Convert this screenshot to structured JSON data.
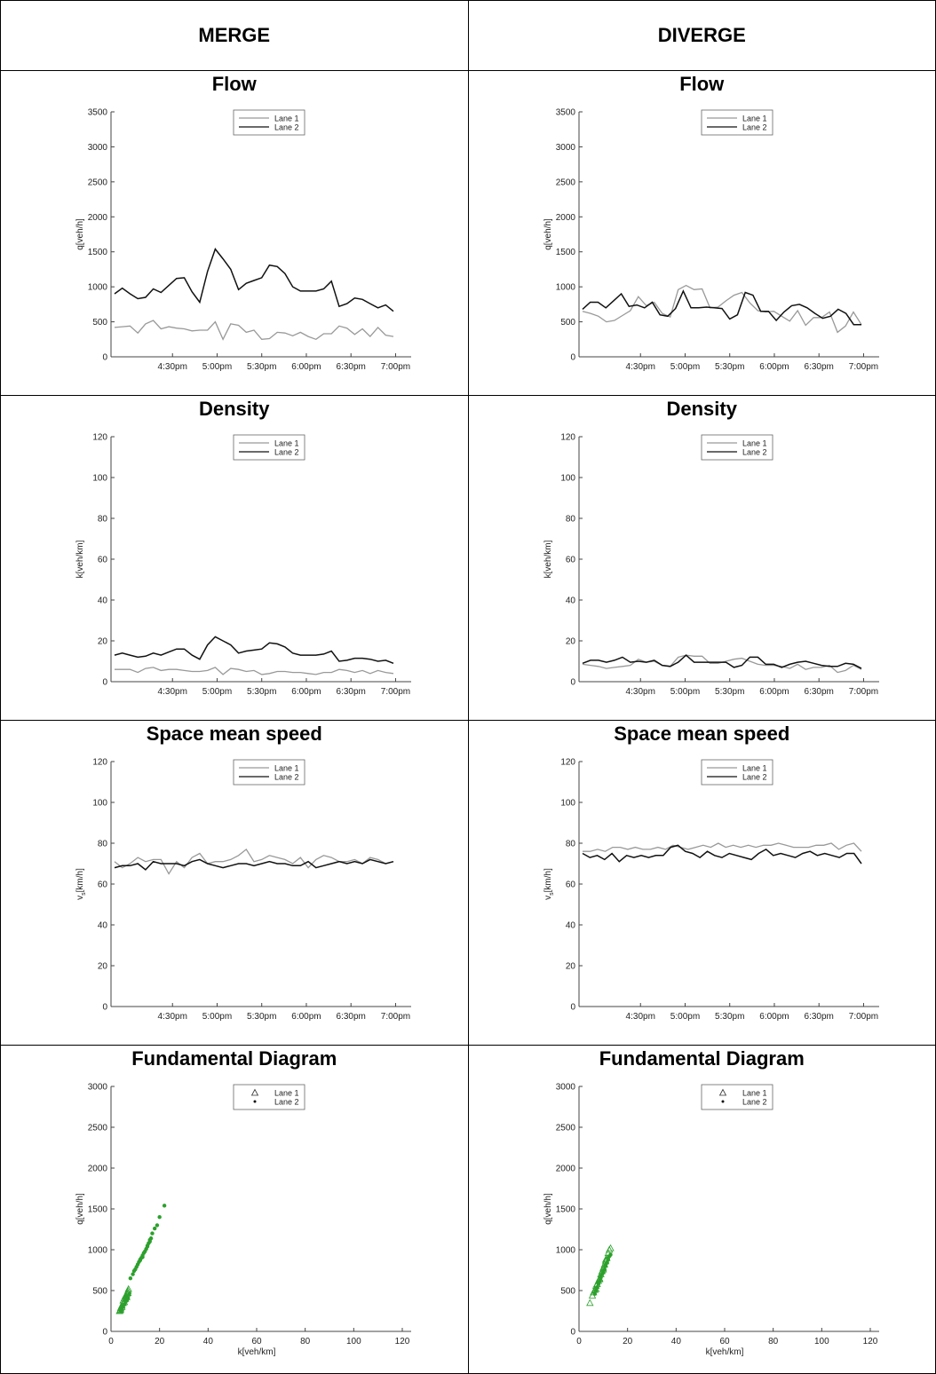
{
  "headers": {
    "left": "MERGE",
    "right": "DIVERGE"
  },
  "xticks_time": [
    "4:30pm",
    "5:00pm",
    "5:30pm",
    "6:00pm",
    "6:30pm",
    "7:00pm"
  ],
  "legend": {
    "lane1": "Lane 1",
    "lane2": "Lane 2"
  },
  "colors": {
    "lane1": "#999999",
    "lane2": "#111111",
    "fd": "#2ca02c"
  },
  "chart_data": [
    {
      "id": "merge-flow",
      "panel": "MERGE",
      "type": "line",
      "title": "Flow",
      "ylabel": "q[veh/h]",
      "ylim": [
        0,
        3500
      ],
      "yticks": [
        0,
        500,
        1000,
        1500,
        2000,
        2500,
        3000,
        3500
      ],
      "series": [
        {
          "name": "Lane 1",
          "values": [
            420,
            430,
            440,
            340,
            470,
            520,
            400,
            430,
            410,
            400,
            370,
            380,
            380,
            500,
            250,
            470,
            450,
            350,
            380,
            250,
            260,
            350,
            340,
            300,
            350,
            290,
            250,
            330,
            330,
            440,
            410,
            320,
            400,
            290,
            420,
            310,
            290
          ]
        },
        {
          "name": "Lane 2",
          "values": [
            900,
            980,
            900,
            830,
            850,
            970,
            920,
            1020,
            1120,
            1130,
            930,
            780,
            1220,
            1540,
            1400,
            1250,
            960,
            1050,
            1090,
            1130,
            1310,
            1290,
            1190,
            1000,
            940,
            940,
            940,
            970,
            1080,
            720,
            760,
            840,
            820,
            760,
            700,
            740,
            650
          ]
        }
      ]
    },
    {
      "id": "diverge-flow",
      "panel": "DIVERGE",
      "type": "line",
      "title": "Flow",
      "ylabel": "q[veh/h]",
      "ylim": [
        0,
        3500
      ],
      "yticks": [
        0,
        500,
        1000,
        1500,
        2000,
        2500,
        3000,
        3500
      ],
      "series": [
        {
          "name": "Lane 1",
          "values": [
            650,
            620,
            580,
            500,
            520,
            590,
            660,
            860,
            730,
            780,
            620,
            570,
            960,
            1020,
            960,
            970,
            700,
            710,
            800,
            880,
            920,
            770,
            660,
            640,
            650,
            580,
            510,
            660,
            450,
            560,
            560,
            640,
            350,
            440,
            640,
            460
          ]
        },
        {
          "name": "Lane 2",
          "values": [
            680,
            780,
            780,
            700,
            800,
            900,
            720,
            740,
            700,
            780,
            600,
            580,
            690,
            940,
            700,
            700,
            710,
            700,
            690,
            540,
            600,
            920,
            880,
            650,
            650,
            520,
            640,
            730,
            750,
            700,
            620,
            550,
            580,
            680,
            620,
            460,
            460
          ]
        }
      ]
    },
    {
      "id": "merge-density",
      "panel": "MERGE",
      "type": "line",
      "title": "Density",
      "ylabel": "k[veh/km]",
      "ylim": [
        0,
        120
      ],
      "yticks": [
        0,
        20,
        40,
        60,
        80,
        100,
        120
      ],
      "series": [
        {
          "name": "Lane 1",
          "values": [
            6,
            6,
            6,
            4.5,
            6.5,
            7,
            5.5,
            6,
            6,
            5.5,
            5,
            5,
            5.5,
            7,
            3.5,
            6.5,
            6,
            5,
            5.5,
            3.5,
            4,
            5,
            5,
            4.5,
            4.5,
            4,
            3.5,
            4.5,
            4.5,
            6,
            5.5,
            4.5,
            5.5,
            4,
            5.5,
            4.5,
            4
          ]
        },
        {
          "name": "Lane 2",
          "values": [
            13,
            14,
            13,
            12,
            12.5,
            14,
            13,
            14.5,
            16,
            16,
            13,
            11,
            18,
            22,
            20,
            18,
            14,
            15,
            15.5,
            16,
            19,
            18.5,
            17,
            14,
            13,
            13,
            13,
            13.5,
            15,
            10,
            10.5,
            11.5,
            11.5,
            11,
            10,
            10.5,
            9
          ]
        }
      ]
    },
    {
      "id": "diverge-density",
      "panel": "DIVERGE",
      "type": "line",
      "title": "Density",
      "ylabel": "k[veh/km]",
      "ylim": [
        0,
        120
      ],
      "yticks": [
        0,
        20,
        40,
        60,
        80,
        100,
        120
      ],
      "series": [
        {
          "name": "Lane 1",
          "values": [
            8.5,
            8,
            7.5,
            6.5,
            7,
            7.5,
            8,
            11,
            9.5,
            10,
            8,
            7.5,
            12,
            13,
            12.5,
            12.5,
            9,
            9,
            10,
            11,
            11.5,
            10,
            8.5,
            8,
            8,
            7.5,
            6.5,
            8.5,
            6,
            7,
            7,
            8,
            4.5,
            5.5,
            8,
            6
          ]
        },
        {
          "name": "Lane 2",
          "values": [
            9,
            10.5,
            10.5,
            9.5,
            10.5,
            12,
            9.5,
            10,
            9.5,
            10.5,
            8,
            7.5,
            9.5,
            13,
            9.5,
            9.5,
            9.5,
            9.5,
            9.5,
            7,
            8,
            12,
            12,
            8.5,
            8.5,
            7,
            8.5,
            9.5,
            10,
            9,
            8,
            7.5,
            7.5,
            9,
            8.5,
            6.5
          ]
        }
      ]
    },
    {
      "id": "merge-speed",
      "panel": "MERGE",
      "type": "line",
      "title": "Space mean speed",
      "ylabel": "v_s[km/h]",
      "ylim": [
        0,
        120
      ],
      "yticks": [
        0,
        20,
        40,
        60,
        80,
        100,
        120
      ],
      "series": [
        {
          "name": "Lane 1",
          "values": [
            71,
            68,
            70,
            73,
            71,
            72,
            72,
            65,
            71,
            68,
            73,
            75,
            70,
            71,
            71,
            72,
            74,
            77,
            71,
            72,
            74,
            73,
            72,
            70,
            73,
            68,
            72,
            74,
            73,
            71,
            71,
            72,
            70,
            73,
            72,
            70,
            71
          ]
        },
        {
          "name": "Lane 2",
          "values": [
            68,
            69,
            69,
            70,
            67,
            71,
            70,
            70,
            70,
            69,
            71,
            72,
            70,
            69,
            68,
            69,
            70,
            70,
            69,
            70,
            71,
            70,
            70,
            69,
            69,
            71,
            68,
            69,
            70,
            71,
            70,
            71,
            70,
            72,
            71,
            70,
            71
          ]
        }
      ]
    },
    {
      "id": "diverge-speed",
      "panel": "DIVERGE",
      "type": "line",
      "title": "Space mean speed",
      "ylabel": "v_s[km/h]",
      "ylim": [
        0,
        120
      ],
      "yticks": [
        0,
        20,
        40,
        60,
        80,
        100,
        120
      ],
      "series": [
        {
          "name": "Lane 1",
          "values": [
            76,
            76,
            77,
            76,
            78,
            78,
            77,
            78,
            77,
            77,
            78,
            77,
            79,
            78,
            77,
            78,
            79,
            78,
            80,
            78,
            79,
            78,
            79,
            78,
            79,
            79,
            80,
            79,
            78,
            78,
            78,
            79,
            79,
            80,
            77,
            79,
            80,
            76
          ]
        },
        {
          "name": "Lane 2",
          "values": [
            75,
            73,
            74,
            72,
            75,
            71,
            74,
            73,
            74,
            73,
            74,
            74,
            78,
            79,
            76,
            75,
            73,
            76,
            74,
            73,
            75,
            74,
            73,
            72,
            75,
            77,
            74,
            75,
            74,
            73,
            75,
            76,
            74,
            75,
            74,
            73,
            75,
            75,
            70
          ]
        }
      ]
    },
    {
      "id": "merge-fd",
      "panel": "MERGE",
      "type": "scatter",
      "title": "Fundamental Diagram",
      "xlabel": "k[veh/km]",
      "ylabel": "q[veh/h]",
      "xlim": [
        0,
        120
      ],
      "ylim": [
        0,
        3000
      ],
      "xticks": [
        0,
        20,
        40,
        60,
        80,
        100,
        120
      ],
      "yticks": [
        0,
        500,
        1000,
        1500,
        2000,
        2500,
        3000
      ],
      "series": [
        {
          "name": "Lane 1",
          "marker": "triangle",
          "x": [
            3.5,
            4,
            4.5,
            5,
            5,
            5.5,
            6,
            6,
            6.5,
            6.5,
            7,
            7,
            4.5,
            5.5,
            6,
            4,
            3.8,
            6.8,
            7.2
          ],
          "y": [
            250,
            290,
            320,
            350,
            380,
            410,
            430,
            400,
            460,
            420,
            500,
            470,
            300,
            360,
            440,
            270,
            260,
            480,
            520
          ]
        },
        {
          "name": "Lane 2",
          "marker": "dot",
          "x": [
            4,
            4.5,
            5,
            5.5,
            6,
            6.5,
            7,
            8,
            9,
            10,
            10.5,
            11,
            11.5,
            12,
            12.5,
            13,
            13.5,
            14,
            14.5,
            15,
            15.5,
            16,
            16.5,
            17,
            18,
            19,
            20,
            22,
            6,
            7.5,
            9.5,
            12,
            13,
            15,
            16
          ],
          "y": [
            250,
            280,
            310,
            330,
            360,
            380,
            410,
            650,
            700,
            760,
            790,
            820,
            850,
            870,
            900,
            930,
            960,
            980,
            1010,
            1050,
            1080,
            1100,
            1140,
            1200,
            1260,
            1300,
            1400,
            1540,
            420,
            460,
            740,
            880,
            910,
            1040,
            1120
          ]
        }
      ]
    },
    {
      "id": "diverge-fd",
      "panel": "DIVERGE",
      "type": "scatter",
      "title": "Fundamental Diagram",
      "xlabel": "k[veh/km]",
      "ylabel": "q[veh/h]",
      "xlim": [
        0,
        120
      ],
      "ylim": [
        0,
        3000
      ],
      "xticks": [
        0,
        20,
        40,
        60,
        80,
        100,
        120
      ],
      "yticks": [
        0,
        500,
        1000,
        1500,
        2000,
        2500,
        3000
      ],
      "series": [
        {
          "name": "Lane 1",
          "marker": "triangle",
          "x": [
            4.5,
            5.5,
            6,
            6.5,
            7,
            7.5,
            8,
            8.5,
            9,
            9.5,
            10,
            10.5,
            11,
            11.5,
            12,
            12.5,
            13,
            7,
            8.5,
            10,
            11
          ],
          "y": [
            350,
            440,
            480,
            510,
            560,
            580,
            620,
            650,
            700,
            740,
            780,
            820,
            860,
            900,
            960,
            1000,
            1020,
            520,
            640,
            760,
            880
          ]
        },
        {
          "name": "Lane 2",
          "marker": "dot",
          "x": [
            6.5,
            7,
            7.5,
            8,
            8.5,
            9,
            9.5,
            10,
            10.5,
            11,
            11.5,
            12,
            12.5,
            13,
            8,
            9,
            10,
            11,
            12
          ],
          "y": [
            460,
            500,
            540,
            580,
            620,
            660,
            700,
            720,
            760,
            800,
            840,
            880,
            920,
            940,
            600,
            680,
            740,
            820,
            900
          ]
        }
      ]
    }
  ]
}
